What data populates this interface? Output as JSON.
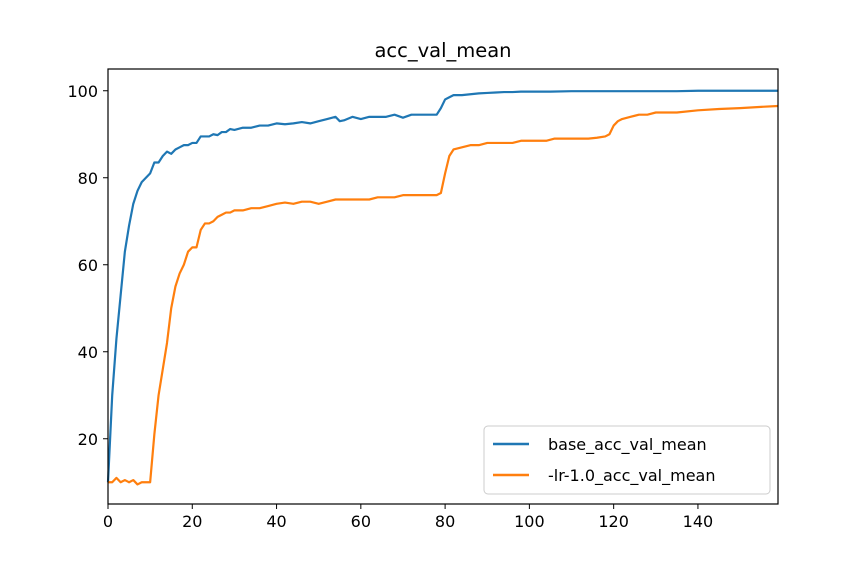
{
  "chart_data": {
    "type": "line",
    "title": "acc_val_mean",
    "xlabel": "",
    "ylabel": "",
    "xlim": [
      0,
      159
    ],
    "ylim": [
      5,
      105
    ],
    "xticks": [
      0,
      20,
      40,
      60,
      80,
      100,
      120,
      140
    ],
    "yticks": [
      20,
      40,
      60,
      80,
      100
    ],
    "legend_position": "lower-right",
    "grid": false,
    "series": [
      {
        "name": "base_acc_val_mean",
        "color": "#1f77b4",
        "x": [
          0,
          1,
          2,
          3,
          4,
          5,
          6,
          7,
          8,
          9,
          10,
          11,
          12,
          13,
          14,
          15,
          16,
          17,
          18,
          19,
          20,
          21,
          22,
          23,
          24,
          25,
          26,
          27,
          28,
          29,
          30,
          32,
          34,
          36,
          38,
          40,
          42,
          44,
          46,
          48,
          50,
          52,
          54,
          55,
          56,
          58,
          60,
          62,
          64,
          66,
          68,
          70,
          72,
          74,
          76,
          78,
          79,
          80,
          81,
          82,
          84,
          86,
          88,
          90,
          92,
          94,
          96,
          98,
          100,
          105,
          110,
          115,
          120,
          125,
          130,
          135,
          140,
          145,
          150,
          155,
          159
        ],
        "y": [
          10,
          30,
          43,
          53,
          63,
          69,
          74,
          77,
          79,
          80,
          81,
          83.5,
          83.5,
          85,
          86,
          85.5,
          86.5,
          87,
          87.5,
          87.5,
          88,
          88,
          89.5,
          89.5,
          89.5,
          90,
          89.8,
          90.5,
          90.5,
          91.2,
          91,
          91.5,
          91.5,
          92,
          92,
          92.5,
          92.3,
          92.5,
          92.8,
          92.5,
          93,
          93.5,
          94,
          93,
          93.2,
          94,
          93.5,
          94,
          94,
          94,
          94.5,
          93.8,
          94.5,
          94.5,
          94.5,
          94.5,
          96,
          98,
          98.5,
          99,
          99,
          99.2,
          99.4,
          99.5,
          99.6,
          99.7,
          99.7,
          99.8,
          99.8,
          99.8,
          99.9,
          99.9,
          99.9,
          99.9,
          99.9,
          99.9,
          100,
          100,
          100,
          100,
          100
        ]
      },
      {
        "name": "-lr-1.0_acc_val_mean",
        "color": "#ff7f0e",
        "x": [
          0,
          1,
          2,
          3,
          4,
          5,
          6,
          7,
          8,
          9,
          10,
          11,
          12,
          13,
          14,
          15,
          16,
          17,
          18,
          19,
          20,
          21,
          22,
          23,
          24,
          25,
          26,
          27,
          28,
          29,
          30,
          32,
          34,
          36,
          38,
          40,
          42,
          44,
          46,
          48,
          50,
          52,
          54,
          56,
          58,
          60,
          62,
          64,
          66,
          68,
          70,
          72,
          74,
          76,
          78,
          79,
          80,
          81,
          82,
          84,
          86,
          88,
          90,
          92,
          94,
          96,
          98,
          100,
          102,
          104,
          106,
          108,
          110,
          112,
          114,
          116,
          118,
          119,
          120,
          121,
          122,
          124,
          126,
          128,
          130,
          135,
          140,
          145,
          150,
          155,
          159
        ],
        "y": [
          10,
          10,
          11,
          10,
          10.5,
          10,
          10.5,
          9.5,
          10,
          10,
          10,
          21,
          30,
          36,
          42,
          50,
          55,
          58,
          60,
          63,
          64,
          64,
          68,
          69.5,
          69.5,
          70,
          71,
          71.5,
          72,
          72,
          72.5,
          72.5,
          73,
          73,
          73.5,
          74,
          74.3,
          74,
          74.5,
          74.5,
          74,
          74.5,
          75,
          75,
          75,
          75,
          75,
          75.5,
          75.5,
          75.5,
          76,
          76,
          76,
          76,
          76,
          76.5,
          81,
          85,
          86.5,
          87,
          87.5,
          87.5,
          88,
          88,
          88,
          88,
          88.5,
          88.5,
          88.5,
          88.5,
          89,
          89,
          89,
          89,
          89,
          89.2,
          89.5,
          90,
          92,
          93,
          93.5,
          94,
          94.5,
          94.5,
          95,
          95,
          95.5,
          95.8,
          96,
          96.3,
          96.5
        ]
      }
    ]
  }
}
